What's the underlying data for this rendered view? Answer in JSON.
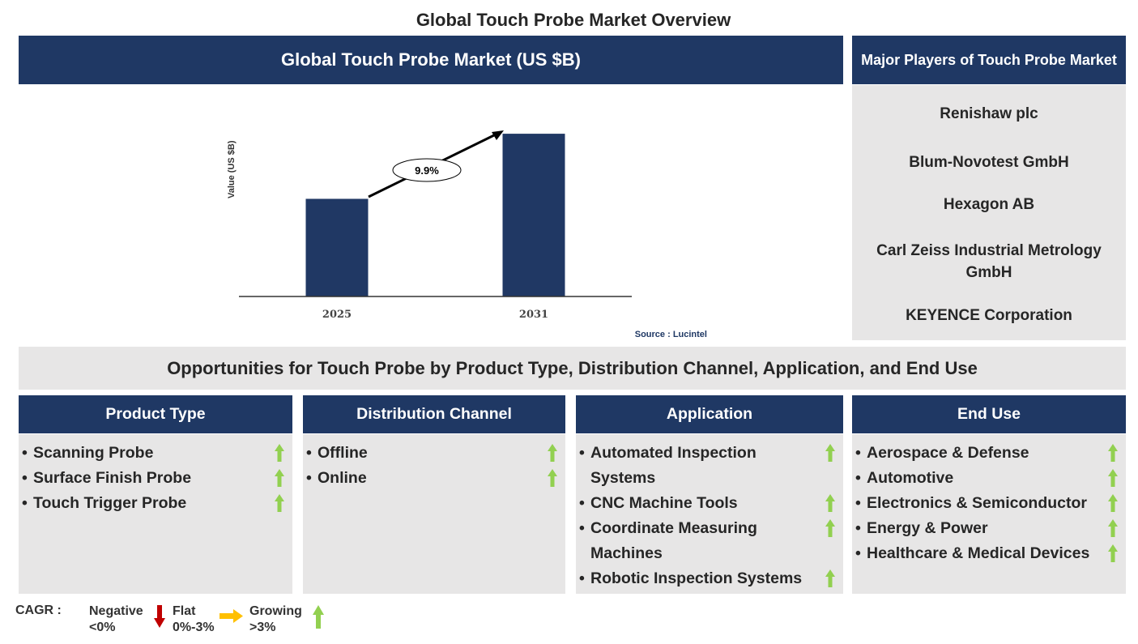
{
  "title": "Global Touch Probe Market Overview",
  "chart_header": "Global Touch Probe Market (US $B)",
  "chart_data": {
    "type": "bar",
    "title": "Global Touch Probe Market (US $B)",
    "categories": [
      "2025",
      "2031"
    ],
    "values": [
      0.6,
      1.0
    ],
    "ylabel": "Value (US $B)",
    "xlabel": "",
    "ylim": [
      0,
      1.1
    ],
    "annotation": "9.9%",
    "source": "Source : Lucintel",
    "grid": false
  },
  "players": {
    "header": "Major Players of Touch Probe Market",
    "items": [
      "Renishaw plc",
      "Blum-Novotest GmbH",
      "Hexagon AB",
      "Carl Zeiss Industrial Metrology GmbH",
      "KEYENCE Corporation"
    ]
  },
  "opportunities": "Opportunities for Touch Probe by Product Type, Distribution Channel, Application, and End Use",
  "columns": [
    {
      "header": "Product Type",
      "items": [
        "Scanning Probe",
        "Surface Finish Probe",
        "Touch Trigger Probe"
      ]
    },
    {
      "header": "Distribution Channel",
      "items": [
        "Offline",
        "Online"
      ]
    },
    {
      "header": "Application",
      "items": [
        "Automated Inspection Systems",
        "CNC Machine Tools",
        "Coordinate Measuring Machines",
        "Robotic Inspection Systems"
      ]
    },
    {
      "header": "End Use",
      "items": [
        "Aerospace & Defense",
        "Automotive",
        "Electronics & Semiconductor",
        "Energy & Power",
        "Healthcare & Medical Devices"
      ]
    }
  ],
  "legend": {
    "label": "CAGR :",
    "negative": "Negative",
    "negative_range": "<0%",
    "flat": "Flat",
    "flat_range": "0%-3%",
    "growing": "Growing",
    "growing_range": ">3%"
  },
  "colors": {
    "navy": "#1f3864",
    "gray": "#e7e6e6",
    "green": "#92d050",
    "red": "#c00000",
    "yellow": "#ffc000"
  }
}
